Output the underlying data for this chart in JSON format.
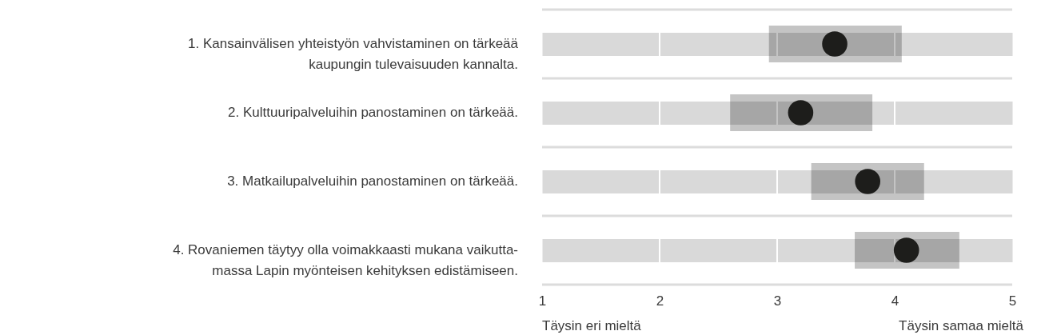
{
  "chart_data": {
    "type": "scatter",
    "orientation": "horizontal",
    "categories": [
      "1. Kansainvälisen yhteistyön vahvistaminen on tärkeää\nkaupungin tulevaisuuden kannalta.",
      "2. Kulttuuripalveluihin panostaminen on tärkeää.",
      "3. Matkailupalveluihin panostaminen on tärkeää.",
      "4. Rovaniemen täytyy olla voimakkaasti mukana vaikutta-\nmassa Lapin myönteisen kehityksen edistämiseen."
    ],
    "series": [
      {
        "color": "#1d1d1b",
        "values": [
          3.49,
          3.2,
          3.77,
          4.1
        ],
        "errors": [
          [
            2.93,
            4.06
          ],
          [
            2.6,
            3.81
          ],
          [
            3.29,
            4.25
          ],
          [
            3.66,
            4.55
          ]
        ]
      }
    ],
    "xlim": [
      1,
      5
    ],
    "xticks": [
      1,
      2,
      3,
      4,
      5
    ],
    "grid": true,
    "marker": "circle",
    "annotations": [
      "Täysin eri mieltä",
      "Täysin samaa mieltä"
    ]
  }
}
